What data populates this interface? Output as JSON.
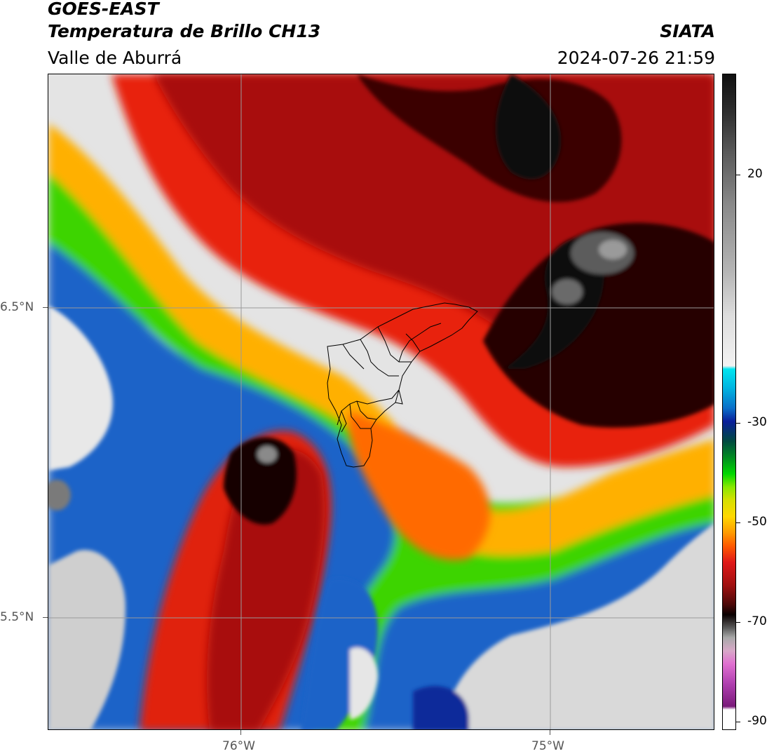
{
  "header": {
    "line1": "GOES-EAST",
    "line2": "Temperatura de Brillo CH13",
    "line3": "Valle de Aburrá",
    "org": "SIATA",
    "timestamp": "2024-07-26 21:59"
  },
  "axes": {
    "lat_labels": [
      "6.5°N",
      "5.5°N"
    ],
    "lon_labels": [
      "76°W",
      "75°W"
    ]
  },
  "colorbar": {
    "tick_labels": [
      "20",
      "-30",
      "-50",
      "-70",
      "-90"
    ]
  },
  "colors": {
    "border": "#000000",
    "gridline": "#9a9a9a",
    "label_gray": "#555555"
  }
}
